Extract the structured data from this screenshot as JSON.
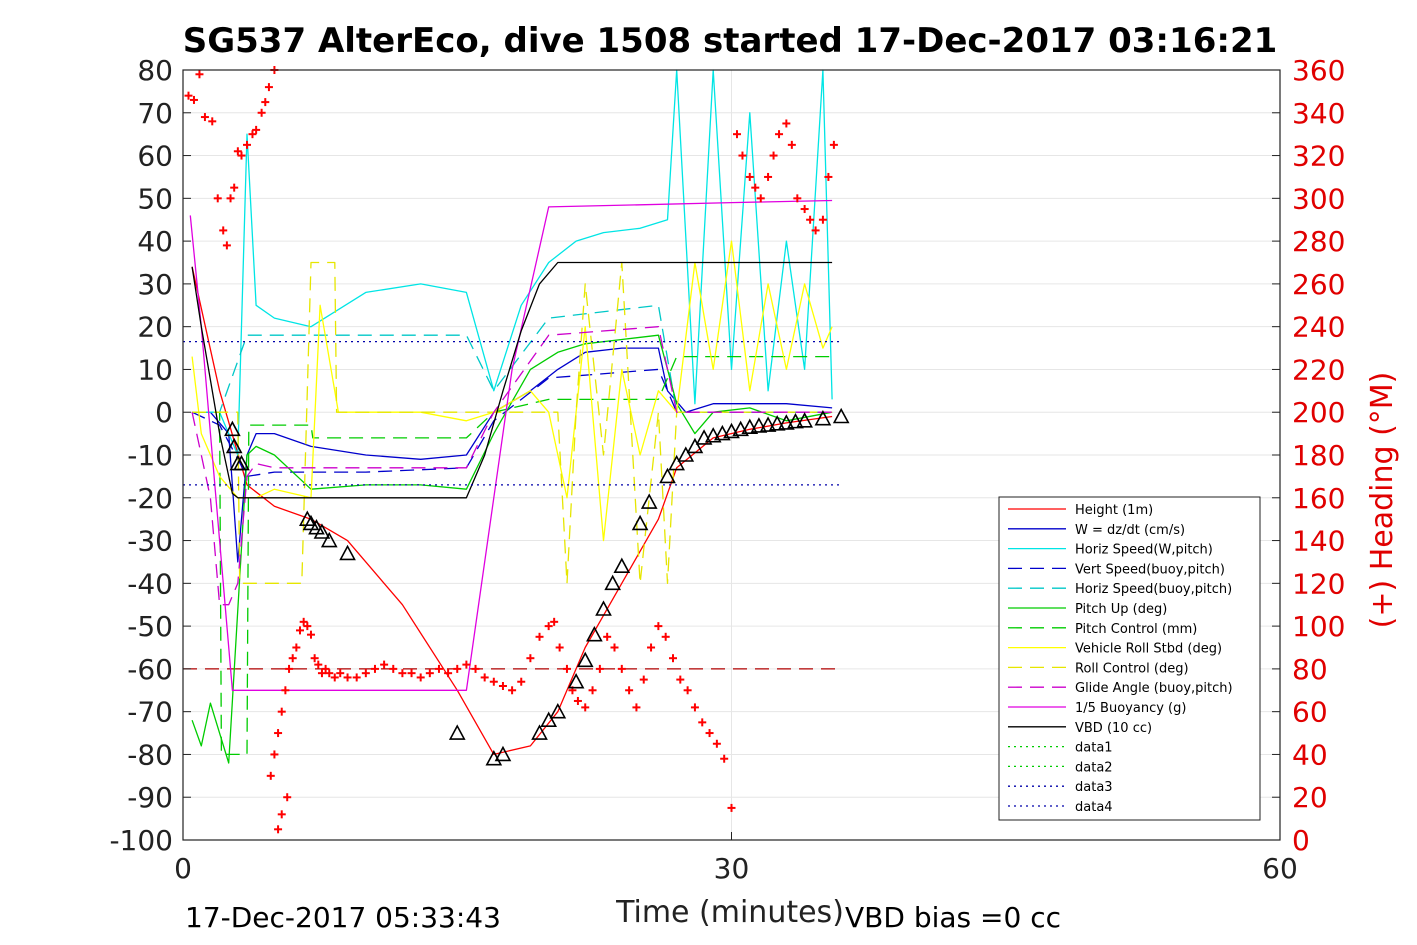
{
  "chart_data": {
    "type": "line",
    "title": "SG537 AlterEco, dive 1508 started 17-Dec-2017 03:16:21",
    "xlabel": "Time (minutes)",
    "ylabel_right": "(+) Heading (°M)",
    "xlim": [
      0,
      60
    ],
    "ylim": [
      -100,
      80
    ],
    "ylim_right": [
      0,
      360
    ],
    "x_ticks": [
      "0",
      "30",
      "60"
    ],
    "y_ticks": [
      "80",
      "70",
      "60",
      "50",
      "40",
      "30",
      "20",
      "10",
      "0",
      "-10",
      "-20",
      "-30",
      "-40",
      "-50",
      "-60",
      "-70",
      "-80",
      "-90",
      "-100"
    ],
    "y2_ticks": [
      "360",
      "340",
      "320",
      "300",
      "280",
      "260",
      "240",
      "220",
      "200",
      "180",
      "160",
      "140",
      "120",
      "100",
      "80",
      "60",
      "40",
      "20",
      "0"
    ],
    "footer_left": "17-Dec-2017 05:33:43",
    "footer_right": "VBD bias =0 cc",
    "legend_position": "lower-right",
    "series": [
      {
        "name": "Height (1m)",
        "color": "#ff0000",
        "dash": "",
        "x": [
          0.5,
          2,
          3.5,
          5,
          7,
          9,
          12,
          15,
          17,
          19,
          20.5,
          22,
          24,
          26,
          27,
          29,
          31,
          33,
          35.5
        ],
        "y": [
          34,
          5,
          -17,
          -22,
          -25,
          -30,
          -45,
          -65,
          -80,
          -78,
          -70,
          -55,
          -40,
          -25,
          -13,
          -6,
          -4,
          -2.5,
          -1
        ]
      },
      {
        "name": "W = dz/dt (cm/s)",
        "color": "#0000cc",
        "dash": "",
        "x": [
          0.5,
          1.5,
          2.5,
          3,
          3.5,
          4,
          5,
          7,
          10,
          13,
          15.5,
          17,
          19,
          20.5,
          22,
          24,
          26,
          26.5,
          27.5,
          29,
          31,
          33,
          35.5
        ],
        "y": [
          0,
          0,
          -5,
          -35,
          -10,
          -5,
          -5,
          -8,
          -10,
          -11,
          -10,
          0,
          5,
          10,
          14,
          15,
          15,
          5,
          0,
          2,
          2,
          2,
          1
        ]
      },
      {
        "name": "Horiz Speed(W,pitch)",
        "color": "#00e5e5",
        "dash": "",
        "x": [
          0.5,
          2,
          3,
          3.5,
          4,
          5,
          7,
          10,
          13,
          15.5,
          17,
          18.5,
          20,
          21.5,
          23,
          25,
          26.5,
          27,
          28,
          29,
          30,
          31,
          32,
          33,
          34,
          35,
          35.5
        ],
        "y": [
          0,
          0,
          -10,
          65,
          25,
          22,
          20,
          28,
          30,
          28,
          5,
          25,
          35,
          40,
          42,
          43,
          45,
          80,
          2,
          80,
          10,
          70,
          5,
          40,
          10,
          80,
          3
        ]
      },
      {
        "name": "Vert Speed(buoy,pitch)",
        "color": "#0000cc",
        "dash": "14,8",
        "x": [
          0.5,
          2,
          3.5,
          5,
          10,
          15.5,
          17,
          20,
          26,
          27,
          35.5
        ],
        "y": [
          0,
          -3,
          -15,
          -14,
          -14,
          -13,
          -2,
          8,
          10,
          0,
          0
        ]
      },
      {
        "name": "Horiz Speed(buoy,pitch)",
        "color": "#00c8c8",
        "dash": "14,8",
        "x": [
          0.5,
          2,
          3.5,
          5,
          15.5,
          17,
          20,
          26,
          27,
          35.5
        ],
        "y": [
          0,
          0,
          18,
          18,
          18,
          5,
          22,
          25,
          0,
          0
        ]
      },
      {
        "name": "Pitch Up (deg)",
        "color": "#00cc00",
        "dash": "",
        "x": [
          0.5,
          1,
          1.5,
          2.5,
          3.5,
          4,
          5,
          7,
          10,
          13,
          15.5,
          17,
          19,
          20.5,
          22,
          24,
          26,
          27,
          28,
          29,
          31,
          33,
          35.5
        ],
        "y": [
          -72,
          -78,
          -68,
          -82,
          -10,
          -8,
          -10,
          -18,
          -17,
          -17,
          -18,
          -5,
          10,
          14,
          16,
          17,
          18,
          2,
          -5,
          0,
          1,
          -2,
          0
        ]
      },
      {
        "name": "Pitch Control (mm)",
        "color": "#00cc00",
        "dash": "14,8",
        "x": [
          0.5,
          2,
          2.1,
          3.5,
          3.6,
          7,
          7.1,
          15.5,
          17,
          20,
          26,
          27,
          35.5
        ],
        "y": [
          0,
          0,
          -80,
          -80,
          -3,
          -3,
          -6,
          -6,
          0,
          3,
          3,
          13,
          13
        ]
      },
      {
        "name": "Vehicle Roll Stbd (deg)",
        "color": "#ffff00",
        "dash": "",
        "x": [
          0.5,
          1,
          2,
          3,
          4,
          5,
          7,
          7.5,
          8.5,
          10,
          13,
          15.5,
          17,
          19,
          20,
          21,
          22,
          23,
          24,
          25,
          26,
          27,
          28,
          29,
          30,
          31,
          32,
          33,
          34,
          35,
          35.5
        ],
        "y": [
          13,
          -5,
          -15,
          -20,
          -20,
          -18,
          -20,
          25,
          0,
          0,
          0,
          -2,
          0,
          5,
          0,
          -20,
          20,
          -30,
          10,
          -10,
          5,
          0,
          35,
          10,
          40,
          5,
          30,
          10,
          30,
          15,
          20
        ]
      },
      {
        "name": "Roll Control (deg)",
        "color": "#e6e600",
        "dash": "14,8",
        "x": [
          0.5,
          2,
          3,
          3.1,
          5,
          6.5,
          7,
          7.1,
          8.3,
          8.4,
          15.5,
          17,
          20.5,
          21,
          21.5,
          22,
          23,
          24,
          25,
          26,
          26.5,
          27,
          35.5
        ],
        "y": [
          0,
          0,
          0,
          -40,
          -40,
          -40,
          35,
          35,
          35,
          0,
          0,
          0,
          0,
          -40,
          0,
          30,
          -10,
          35,
          -40,
          0,
          -40,
          0,
          0
        ]
      },
      {
        "name": "Glide Angle (buoy,pitch)",
        "color": "#cc00cc",
        "dash": "14,8",
        "x": [
          0.5,
          1,
          1.5,
          2,
          2.5,
          3,
          3.5,
          4,
          5,
          7,
          10,
          13,
          15.5,
          17,
          20,
          26,
          27,
          35.5
        ],
        "y": [
          0,
          -10,
          -20,
          -45,
          -45,
          -40,
          -15,
          -12,
          -13,
          -13,
          -13,
          -13,
          -13,
          0,
          18,
          20,
          0,
          0
        ]
      },
      {
        "name": "1/5 Buoyancy (g)",
        "color": "#e000e0",
        "dash": "",
        "x": [
          0.4,
          1,
          2,
          2.7,
          3,
          5,
          10,
          15.5,
          17,
          18,
          20,
          25,
          30,
          35.5
        ],
        "y": [
          46,
          20,
          -30,
          -65,
          -65,
          -65,
          -65,
          -65,
          -20,
          10,
          48,
          48.5,
          49,
          49.5
        ]
      },
      {
        "name": "VBD (10 cc)",
        "color": "#000000",
        "dash": "",
        "x": [
          0.5,
          1,
          2,
          2.7,
          3,
          5,
          10,
          15.5,
          16.5,
          17.5,
          18.5,
          19.5,
          20.5,
          22,
          25,
          30,
          35.5
        ],
        "y": [
          34,
          20,
          -5,
          -19,
          -20,
          -20,
          -20,
          -20,
          -10,
          5,
          19,
          30,
          35,
          35,
          35,
          35,
          35
        ]
      },
      {
        "name": "data1",
        "color": "#00cc00",
        "dash": "2,4",
        "x": [],
        "y": []
      },
      {
        "name": "data2",
        "color": "#00cc00",
        "dash": "2,4",
        "x": [],
        "y": []
      },
      {
        "name": "data3",
        "color": "#0000aa",
        "dash": "2,4",
        "x": [
          0,
          36
        ],
        "y": [
          16.5,
          16.5
        ]
      },
      {
        "name": "data4",
        "color": "#0000aa",
        "dash": "2,4",
        "x": [
          0,
          36
        ],
        "y": [
          -17,
          -17
        ]
      }
    ],
    "heading_ref_line": {
      "y": 80,
      "color": "#b00000",
      "x": [
        0,
        36
      ]
    },
    "heading_points": {
      "color": "#ff0000",
      "x": [
        0.3,
        0.6,
        0.9,
        1.2,
        1.6,
        1.9,
        2.2,
        2.4,
        2.6,
        2.8,
        3.0,
        3.2,
        3.5,
        3.8,
        4.0,
        4.3,
        4.5,
        4.7,
        5.0,
        5.2,
        5.4,
        5.7,
        4.8,
        5.0,
        5.2,
        5.4,
        5.6,
        5.8,
        6.0,
        6.2,
        6.4,
        6.6,
        6.8,
        7.0,
        7.2,
        7.4,
        7.6,
        7.8,
        8.0,
        8.3,
        8.6,
        9,
        9.5,
        10,
        10.5,
        11,
        11.5,
        12,
        12.5,
        13,
        13.5,
        14,
        14.5,
        15,
        15.5,
        16,
        16.5,
        17,
        17.5,
        18,
        18.5,
        19,
        19.5,
        20,
        20.3,
        20.6,
        21,
        21.3,
        21.6,
        22,
        22.4,
        22.8,
        23.2,
        23.6,
        24,
        24.4,
        24.8,
        25.2,
        25.6,
        26,
        26.4,
        26.8,
        27.2,
        27.6,
        28,
        28.4,
        28.8,
        29.2,
        29.6,
        30,
        30.3,
        30.6,
        31,
        31.3,
        31.6,
        32,
        32.3,
        32.6,
        33,
        33.3,
        33.6,
        34,
        34.3,
        34.6,
        35,
        35.3,
        35.6
      ],
      "y": [
        348,
        346,
        358,
        338,
        336,
        300,
        285,
        278,
        300,
        305,
        322,
        320,
        325,
        330,
        332,
        340,
        345,
        352,
        360,
        5,
        12,
        20,
        30,
        40,
        50,
        60,
        70,
        80,
        85,
        90,
        98,
        102,
        100,
        96,
        85,
        82,
        78,
        80,
        78,
        76,
        78,
        76,
        76,
        78,
        80,
        82,
        80,
        78,
        78,
        76,
        78,
        80,
        78,
        80,
        82,
        80,
        76,
        74,
        72,
        70,
        74,
        85,
        95,
        100,
        102,
        90,
        80,
        70,
        65,
        62,
        70,
        80,
        95,
        90,
        80,
        70,
        62,
        75,
        90,
        100,
        95,
        85,
        75,
        70,
        62,
        55,
        50,
        45,
        38,
        15,
        330,
        320,
        310,
        305,
        300,
        310,
        320,
        330,
        335,
        325,
        300,
        295,
        290,
        285,
        290,
        310,
        325
      ]
    },
    "markers": {
      "color": "#000000",
      "points": [
        [
          2.7,
          -4
        ],
        [
          2.8,
          -8
        ],
        [
          3.0,
          -12
        ],
        [
          3.2,
          -12
        ],
        [
          6.8,
          -25
        ],
        [
          7.0,
          -26
        ],
        [
          7.3,
          -27
        ],
        [
          7.6,
          -28
        ],
        [
          8.0,
          -30
        ],
        [
          9.0,
          -33
        ],
        [
          15,
          -75
        ],
        [
          17,
          -81
        ],
        [
          17.5,
          -80
        ],
        [
          19.5,
          -75
        ],
        [
          20,
          -72
        ],
        [
          20.5,
          -70
        ],
        [
          21.5,
          -63
        ],
        [
          22,
          -58
        ],
        [
          22.5,
          -52
        ],
        [
          23,
          -46
        ],
        [
          23.5,
          -40
        ],
        [
          24,
          -36
        ],
        [
          25,
          -26
        ],
        [
          25.5,
          -21
        ],
        [
          26.5,
          -15
        ],
        [
          27,
          -12
        ],
        [
          27.5,
          -10
        ],
        [
          28,
          -8
        ],
        [
          28.5,
          -6
        ],
        [
          29,
          -5.5
        ],
        [
          29.5,
          -5
        ],
        [
          30,
          -4.5
        ],
        [
          30.5,
          -4
        ],
        [
          31,
          -3.5
        ],
        [
          31.5,
          -3.2
        ],
        [
          32,
          -3
        ],
        [
          32.5,
          -2.7
        ],
        [
          33,
          -2.5
        ],
        [
          33.5,
          -2.2
        ],
        [
          34,
          -2
        ],
        [
          35,
          -1.5
        ],
        [
          36,
          -1
        ]
      ]
    }
  }
}
